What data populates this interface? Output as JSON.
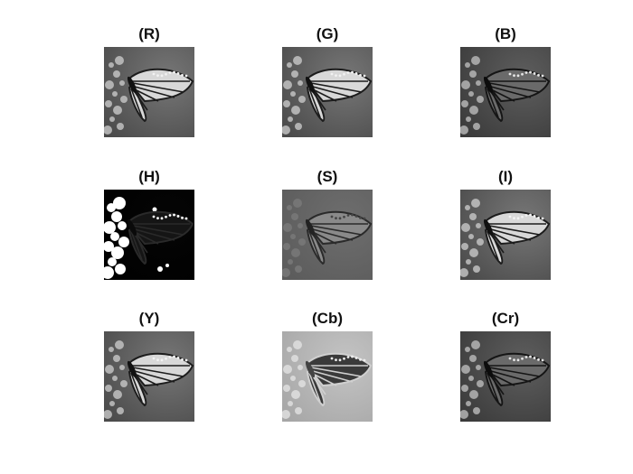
{
  "figure": {
    "panels": [
      {
        "id": "R",
        "title": "(R)",
        "tone": "light-butterfly"
      },
      {
        "id": "G",
        "title": "(G)",
        "tone": "light-butterfly"
      },
      {
        "id": "B",
        "title": "(B)",
        "tone": "dark-butterfly"
      },
      {
        "id": "H",
        "title": "(H)",
        "tone": "hue-mask"
      },
      {
        "id": "S",
        "title": "(S)",
        "tone": "saturation"
      },
      {
        "id": "I",
        "title": "(I)",
        "tone": "light-butterfly"
      },
      {
        "id": "Y",
        "title": "(Y)",
        "tone": "light-butterfly"
      },
      {
        "id": "Cb",
        "title": "(Cb)",
        "tone": "inverted-butterfly"
      },
      {
        "id": "Cr",
        "title": "(Cr)",
        "tone": "dark-butterfly"
      }
    ]
  }
}
